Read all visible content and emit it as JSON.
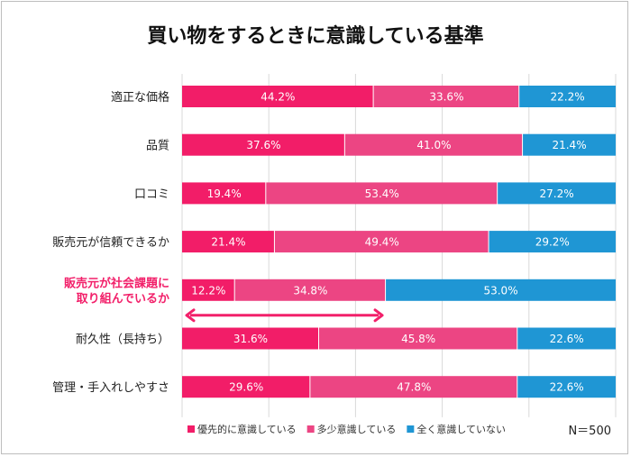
{
  "chart_data": {
    "type": "bar",
    "orientation": "horizontal",
    "stacked": true,
    "title": "買い物をするときに意識している基準",
    "categories": [
      "適正な価格",
      "品質",
      "口コミ",
      "販売元が信頼できるか",
      "販売元が社会課題に\n取り組んでいるか",
      "耐久性（長持ち）",
      "管理・手入れしやすさ"
    ],
    "highlight_category_index": 4,
    "series": [
      {
        "name": "優先的に意識している",
        "color": "#f21d68",
        "values": [
          44.2,
          37.6,
          19.4,
          21.4,
          12.2,
          31.6,
          29.6
        ]
      },
      {
        "name": "多少意識している",
        "color": "#ec4583",
        "values": [
          33.6,
          41.0,
          53.4,
          49.4,
          34.8,
          45.8,
          47.8
        ]
      },
      {
        "name": "全く意識していない",
        "color": "#1f96d4",
        "values": [
          22.2,
          21.4,
          27.2,
          29.2,
          53.0,
          22.6,
          22.6
        ]
      }
    ],
    "xlim": [
      0,
      100
    ],
    "grid": true,
    "legend": "bottom",
    "annotation": "N＝500",
    "highlight_color": "#f2206a"
  }
}
